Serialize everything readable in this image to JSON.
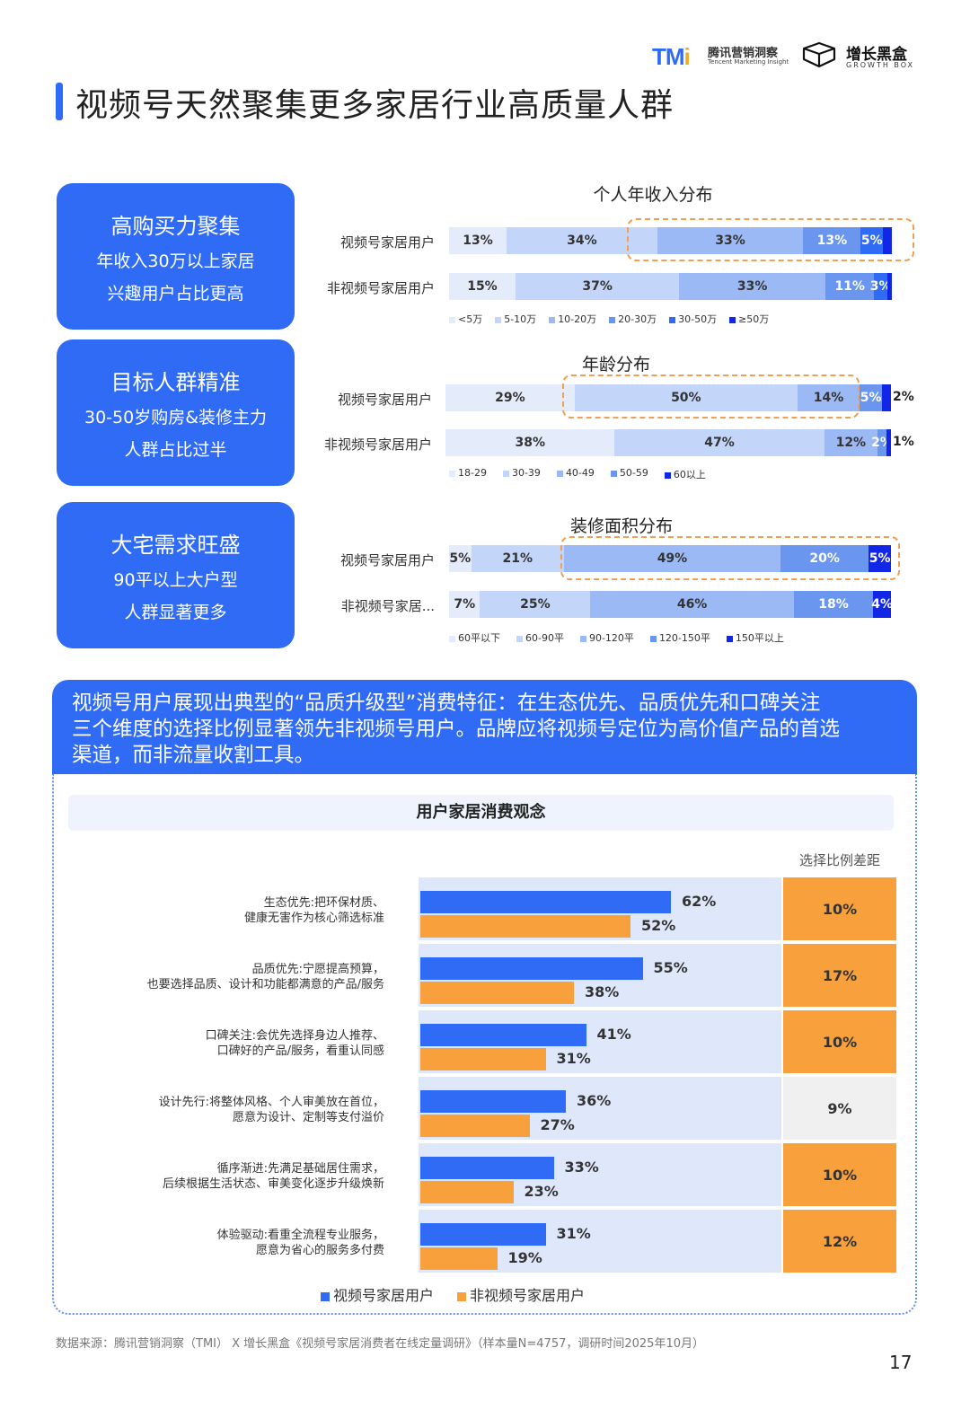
{
  "header": {
    "tmi_mark": "TM",
    "tmi_mark_i": "i",
    "tmi_cn": "腾讯营销洞察",
    "tmi_en": "Tencent Marketing Insight",
    "gb_cn": "增长黑盒",
    "gb_en": "GROWTH BOX",
    "title": "视频号天然聚集更多家居行业高质量人群"
  },
  "cards": [
    {
      "heading": "高购买力聚集",
      "line1": "年收入30万以上家居",
      "line2": "兴趣用户占比更高"
    },
    {
      "heading": "目标人群精准",
      "line1": "30-50岁购房&装修主力",
      "line2": "人群占比过半"
    },
    {
      "heading": "大宅需求旺盛",
      "line1": "90平以上大户型",
      "line2": "人群显著更多"
    }
  ],
  "colors": {
    "brand": "#2f6bf5",
    "orange": "#f8a03c",
    "seg1": "#e4ecfb",
    "seg2": "#c3d5f8",
    "seg3": "#9bb9f4",
    "seg4": "#6a96f0",
    "seg5": "#2f6bf5",
    "seg6": "#1226e8"
  },
  "chart_data": [
    {
      "type": "bar",
      "title": "个人年收入分布",
      "stacked": true,
      "categories": [
        "视频号家居用户",
        "非视频号家居用户"
      ],
      "series": [
        {
          "name": "<5万",
          "values": [
            13,
            15
          ],
          "labels": [
            "13%",
            "15%"
          ]
        },
        {
          "name": "5-10万",
          "values": [
            34,
            37
          ],
          "labels": [
            "34%",
            "37%"
          ]
        },
        {
          "name": "10-20万",
          "values": [
            33,
            33
          ],
          "labels": [
            "33%",
            "33%"
          ]
        },
        {
          "name": "20-30万",
          "values": [
            13,
            11
          ],
          "labels": [
            "13%",
            "11%"
          ]
        },
        {
          "name": "30-50万",
          "values": [
            5,
            3
          ],
          "labels": [
            "5%",
            "3%"
          ]
        },
        {
          "name": "≥50万",
          "values": [
            2,
            1
          ],
          "labels": [
            "",
            ""
          ]
        }
      ]
    },
    {
      "type": "bar",
      "title": "年龄分布",
      "stacked": true,
      "categories": [
        "视频号家居用户",
        "非视频号家居用户"
      ],
      "series": [
        {
          "name": "18-29",
          "values": [
            29,
            38
          ],
          "labels": [
            "29%",
            "38%"
          ]
        },
        {
          "name": "30-39",
          "values": [
            50,
            47
          ],
          "labels": [
            "50%",
            "47%"
          ]
        },
        {
          "name": "40-49",
          "values": [
            14,
            12
          ],
          "labels": [
            "14%",
            "12%"
          ]
        },
        {
          "name": "50-59",
          "values": [
            5,
            2
          ],
          "labels": [
            "5%",
            "2%"
          ]
        },
        {
          "name": "60以上",
          "values": [
            2,
            1
          ],
          "labels": [
            "2%",
            "1%"
          ]
        }
      ]
    },
    {
      "type": "bar",
      "title": "装修面积分布",
      "stacked": true,
      "categories": [
        "视频号家居用户",
        "非视频号家居..."
      ],
      "series": [
        {
          "name": "60平以下",
          "values": [
            5,
            7
          ],
          "labels": [
            "5%",
            "7%"
          ]
        },
        {
          "name": "60-90平",
          "values": [
            21,
            25
          ],
          "labels": [
            "21%",
            "25%"
          ]
        },
        {
          "name": "90-120平",
          "values": [
            49,
            46
          ],
          "labels": [
            "49%",
            "46%"
          ]
        },
        {
          "name": "120-150平",
          "values": [
            20,
            18
          ],
          "labels": [
            "20%",
            "18%"
          ]
        },
        {
          "name": "150平以上",
          "values": [
            5,
            4
          ],
          "labels": [
            "5%",
            "4%"
          ]
        }
      ]
    },
    {
      "type": "bar",
      "title": "用户家居消费观念",
      "orientation": "horizontal",
      "diff_header": "选择比例差距",
      "categories": [
        [
          "生态优先:把环保材质、",
          "健康无害作为核心筛选标准"
        ],
        [
          "品质优先:宁愿提高预算，",
          "也要选择品质、设计和功能都满意的产品/服务"
        ],
        [
          "口碑关注:会优先选择身边人推荐、",
          "口碑好的产品/服务，看重认同感"
        ],
        [
          "设计先行:将整体风格、个人审美放在首位，",
          "愿意为设计、定制等支付溢价"
        ],
        [
          "循序渐进:先满足基础居住需求，",
          "后续根据生活状态、审美变化逐步升级焕新"
        ],
        [
          "体验驱动:看重全流程专业服务，",
          "愿意为省心的服务多付费"
        ]
      ],
      "series": [
        {
          "name": "视频号家居用户",
          "values": [
            62,
            55,
            41,
            36,
            33,
            31
          ]
        },
        {
          "name": "非视频号家居用户",
          "values": [
            52,
            38,
            31,
            27,
            23,
            19
          ]
        }
      ],
      "diff": [
        "10%",
        "17%",
        "10%",
        "9%",
        "10%",
        "12%"
      ],
      "diff_highlight": [
        true,
        true,
        true,
        false,
        true,
        true
      ]
    }
  ],
  "banner": {
    "line1": "视频号用户展现出典型的“品质升级型”消费特征：在生态优先、品质优先和口碑关注",
    "line2": "三个维度的选择比例显著领先非视频号用户。品牌应将视频号定位为高价值产品的首选",
    "line3": "渠道，而非流量收割工具。"
  },
  "footer": {
    "source": "数据来源：腾讯营销洞察（TMI） X 增长黑盒《视频号家居消费者在线定量调研》（样本量N=4757，调研时间2025年10月）",
    "page": "17"
  }
}
